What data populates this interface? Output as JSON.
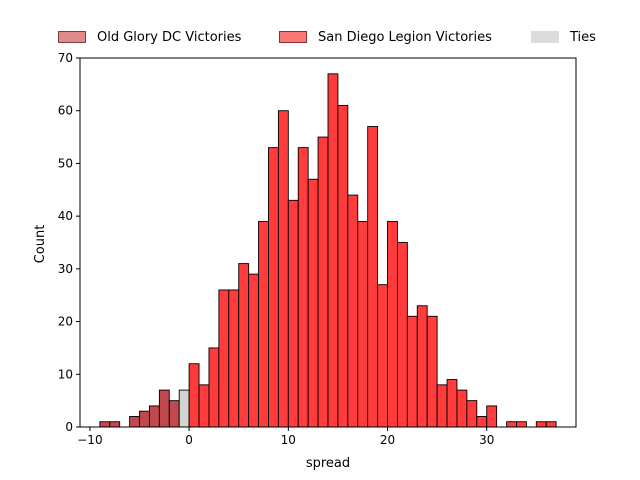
{
  "chart_data": {
    "type": "histogram",
    "xlabel": "spread",
    "ylabel": "Count",
    "xlim": [
      -11,
      39
    ],
    "ylim": [
      0,
      70
    ],
    "xticks": [
      -10,
      0,
      10,
      20,
      30
    ],
    "yticks": [
      0,
      10,
      20,
      30,
      40,
      50,
      60,
      70
    ],
    "bin_width": 1,
    "legend": {
      "placement": "top-center-outside",
      "items": [
        {
          "label": "Old Glory DC Victories",
          "color": "#d9777b",
          "edge": "#7f3f43"
        },
        {
          "label": "San Diego Legion Victories",
          "color": "#ff5555",
          "edge": "#8a3030"
        },
        {
          "label": "Ties",
          "color": "#d9d9d9",
          "edge": "#d9d9d9"
        }
      ]
    },
    "series": [
      {
        "name": "Old Glory DC Victories",
        "color": "#c0494f",
        "edge": "#000000",
        "bins": [
          {
            "x": -9,
            "count": 1
          },
          {
            "x": -8,
            "count": 1
          },
          {
            "x": -6,
            "count": 2
          },
          {
            "x": -5,
            "count": 3
          },
          {
            "x": -4,
            "count": 4
          },
          {
            "x": -3,
            "count": 7
          },
          {
            "x": -2,
            "count": 5
          }
        ]
      },
      {
        "name": "Ties",
        "color": "#d3d3d3",
        "edge": "#000000",
        "bins": [
          {
            "x": -1,
            "count": 7
          }
        ]
      },
      {
        "name": "San Diego Legion Victories",
        "color": "#ff3b3b",
        "edge": "#000000",
        "bins": [
          {
            "x": 0,
            "count": 12
          },
          {
            "x": 1,
            "count": 8
          },
          {
            "x": 2,
            "count": 15
          },
          {
            "x": 3,
            "count": 26
          },
          {
            "x": 4,
            "count": 26
          },
          {
            "x": 5,
            "count": 31
          },
          {
            "x": 6,
            "count": 29
          },
          {
            "x": 7,
            "count": 39
          },
          {
            "x": 8,
            "count": 53
          },
          {
            "x": 9,
            "count": 60
          },
          {
            "x": 10,
            "count": 43
          },
          {
            "x": 11,
            "count": 53
          },
          {
            "x": 12,
            "count": 47
          },
          {
            "x": 13,
            "count": 55
          },
          {
            "x": 14,
            "count": 67
          },
          {
            "x": 15,
            "count": 61
          },
          {
            "x": 16,
            "count": 44
          },
          {
            "x": 17,
            "count": 39
          },
          {
            "x": 18,
            "count": 57
          },
          {
            "x": 19,
            "count": 27
          },
          {
            "x": 20,
            "count": 39
          },
          {
            "x": 21,
            "count": 35
          },
          {
            "x": 22,
            "count": 21
          },
          {
            "x": 23,
            "count": 23
          },
          {
            "x": 24,
            "count": 21
          },
          {
            "x": 25,
            "count": 8
          },
          {
            "x": 26,
            "count": 9
          },
          {
            "x": 27,
            "count": 7
          },
          {
            "x": 28,
            "count": 5
          },
          {
            "x": 29,
            "count": 2
          },
          {
            "x": 30,
            "count": 4
          },
          {
            "x": 32,
            "count": 1
          },
          {
            "x": 33,
            "count": 1
          },
          {
            "x": 35,
            "count": 1
          },
          {
            "x": 36,
            "count": 1
          }
        ]
      }
    ]
  }
}
